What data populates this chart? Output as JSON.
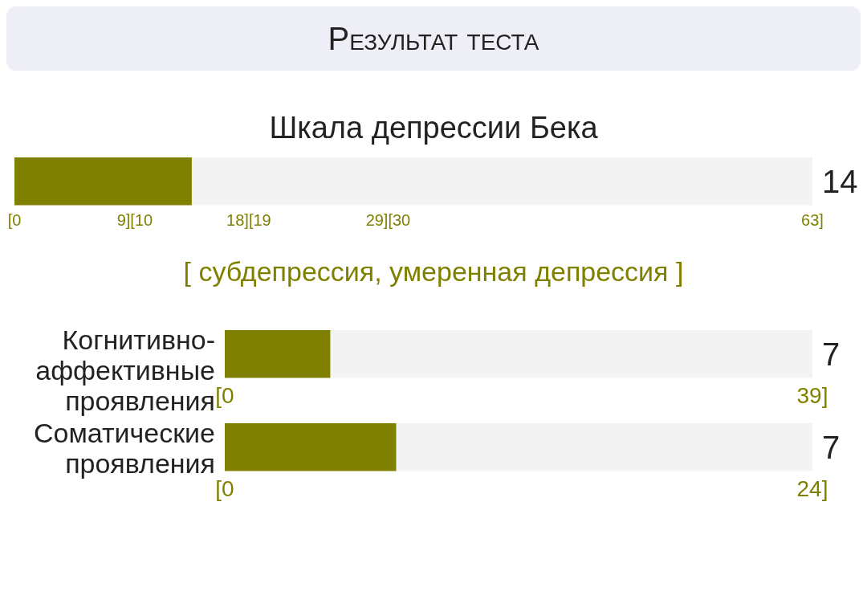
{
  "chart_data": [
    {
      "type": "bar",
      "orientation": "horizontal",
      "title": "Результат теста",
      "subtitle": "Шкала депрессии Бека",
      "categories": [
        null
      ],
      "values": [
        14
      ],
      "color": "#808000",
      "xlim": [
        0,
        63
      ],
      "xticks": [
        {
          "value": 0,
          "label": "[0"
        },
        {
          "value": 9.5,
          "label": "9][10"
        },
        {
          "value": 18.5,
          "label": "18][19"
        },
        {
          "value": 29.5,
          "label": "29][30"
        },
        {
          "value": 63,
          "label": "63]"
        }
      ],
      "annotations": [
        "14",
        "[ субдепрессия, умеренная депрессия ]"
      ],
      "grid": false,
      "legend": false
    },
    {
      "type": "bar",
      "orientation": "horizontal",
      "categories": [
        "Когнитивно-аффективные проявления"
      ],
      "values": [
        7
      ],
      "color": "#808000",
      "xlim": [
        0,
        39
      ],
      "xticks": [
        {
          "value": 0,
          "label": "[0"
        },
        {
          "value": 39,
          "label": "39]"
        }
      ],
      "annotations": [
        "7"
      ],
      "grid": false,
      "legend": false
    },
    {
      "type": "bar",
      "orientation": "horizontal",
      "categories": [
        "Соматические проявления"
      ],
      "values": [
        7
      ],
      "color": "#808000",
      "xlim": [
        0,
        24
      ],
      "xticks": [
        {
          "value": 0,
          "label": "[0"
        },
        {
          "value": 24,
          "label": "24]"
        }
      ],
      "annotations": [
        "7"
      ],
      "grid": false,
      "legend": false
    }
  ]
}
